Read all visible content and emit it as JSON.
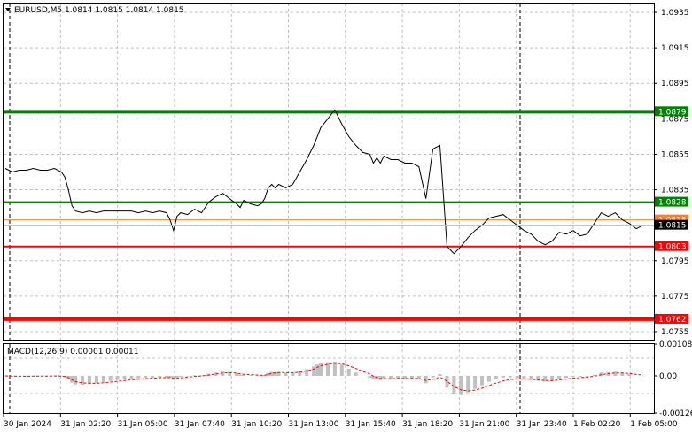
{
  "chart": {
    "symbol_tf": "EURUSD,M5",
    "ohlc": "1.0814 1.0815 1.0814 1.0815",
    "title_line": "EURUSD,M5  1.0814 1.0815 1.0814 1.0815",
    "bg_color": "#ffffff",
    "price_line_color": "#000000",
    "grid_color": "#c0c0c0"
  },
  "price_axis": {
    "ticks": [
      "1.0935",
      "1.0915",
      "1.0895",
      "1.0875",
      "1.0855",
      "1.0835",
      "1.0815",
      "1.0795",
      "1.0775",
      "1.0755"
    ],
    "min": 1.075,
    "max": 1.094
  },
  "levels": [
    {
      "label": "1.0879",
      "value": 1.0879,
      "color": "#008000",
      "thickness": "thick"
    },
    {
      "label": "1.0828",
      "value": 1.0828,
      "color": "#008000",
      "thickness": "medium"
    },
    {
      "label": "1.0818",
      "value": 1.0818,
      "color": "#ff7f27",
      "thickness": "thin"
    },
    {
      "label": "1.0803",
      "value": 1.0803,
      "color": "#ff0000",
      "thickness": "medium"
    },
    {
      "label": "1.0762",
      "value": 1.0762,
      "color": "#ff0000",
      "thickness": "thick"
    }
  ],
  "current_price": {
    "label": "1.0815",
    "value": 1.0815
  },
  "macd": {
    "title": "MACD(12,26,9) 0.00001 0.00011",
    "ticks": [
      "0.00108",
      "0.00",
      "-0.00126"
    ],
    "min": -0.00126,
    "max": 0.00108,
    "histogram_color": "#c0c0c0",
    "signal_color": "#ff0000"
  },
  "time_axis": {
    "labels": [
      "30 Jan 2024",
      "31 Jan 02:20",
      "31 Jan 05:00",
      "31 Jan 07:40",
      "31 Jan 10:20",
      "31 Jan 13:00",
      "31 Jan 15:40",
      "31 Jan 18:20",
      "31 Jan 21:00",
      "31 Jan 23:40",
      "1 Feb 02:20",
      "1 Feb 05:00"
    ]
  },
  "chart_data": {
    "type": "line",
    "title": "EURUSD,M5  1.0814 1.0815 1.0814 1.0815",
    "x_ticks": [
      "30 Jan 2024",
      "31 Jan 02:20",
      "31 Jan 05:00",
      "31 Jan 07:40",
      "31 Jan 10:20",
      "31 Jan 13:00",
      "31 Jan 15:40",
      "31 Jan 18:20",
      "31 Jan 21:00",
      "31 Jan 23:40",
      "1 Feb 02:20",
      "1 Feb 05:00"
    ],
    "ylim": [
      1.075,
      1.094
    ],
    "series": [
      {
        "name": "EURUSD,M5",
        "x": [
          0,
          2,
          4,
          6,
          8,
          10,
          12,
          14,
          16,
          17,
          18,
          19,
          20,
          22,
          24,
          26,
          28,
          30,
          32,
          34,
          36,
          38,
          40,
          42,
          44,
          46,
          47,
          48,
          49,
          50,
          52,
          54,
          56,
          58,
          60,
          62,
          64,
          66,
          67,
          68,
          70,
          72,
          73,
          74,
          75,
          76,
          77,
          78,
          80,
          82,
          84,
          86,
          88,
          89,
          90,
          92,
          94,
          96,
          98,
          100,
          102,
          104,
          105,
          106,
          107,
          108,
          110,
          112,
          114,
          116,
          118,
          120,
          122,
          124,
          126,
          128,
          130,
          132,
          134,
          136,
          138,
          140,
          142,
          144,
          146,
          148,
          150,
          152,
          154,
          156,
          158,
          160,
          162,
          164,
          166,
          168,
          170,
          172,
          174,
          176,
          178,
          180,
          182
        ],
        "values": [
          1.0847,
          1.0845,
          1.0846,
          1.0846,
          1.0847,
          1.0846,
          1.0846,
          1.0847,
          1.0845,
          1.0842,
          1.0835,
          1.0826,
          1.0823,
          1.0822,
          1.0823,
          1.0822,
          1.0823,
          1.0823,
          1.0823,
          1.0823,
          1.0823,
          1.0822,
          1.0823,
          1.0822,
          1.0823,
          1.0822,
          1.0818,
          1.0812,
          1.082,
          1.0822,
          1.0821,
          1.0824,
          1.0822,
          1.0828,
          1.0831,
          1.0833,
          1.083,
          1.0827,
          1.0825,
          1.0829,
          1.0827,
          1.0826,
          1.0827,
          1.083,
          1.0836,
          1.0838,
          1.0836,
          1.0838,
          1.0836,
          1.0838,
          1.0845,
          1.0852,
          1.086,
          1.0865,
          1.087,
          1.0875,
          1.088,
          1.0872,
          1.0865,
          1.086,
          1.0856,
          1.0855,
          1.085,
          1.0853,
          1.085,
          1.0854,
          1.0852,
          1.0852,
          1.085,
          1.085,
          1.0848,
          1.083,
          1.0858,
          1.086,
          1.0803,
          1.0799,
          1.0803,
          1.0808,
          1.0812,
          1.0815,
          1.0819,
          1.082,
          1.0821,
          1.0818,
          1.0815,
          1.0812,
          1.081,
          1.0806,
          1.0804,
          1.0806,
          1.0811,
          1.081,
          1.0812,
          1.0809,
          1.081,
          1.0816,
          1.0822,
          1.082,
          1.0822,
          1.0818,
          1.0816,
          1.0813,
          1.0815
        ]
      }
    ]
  }
}
